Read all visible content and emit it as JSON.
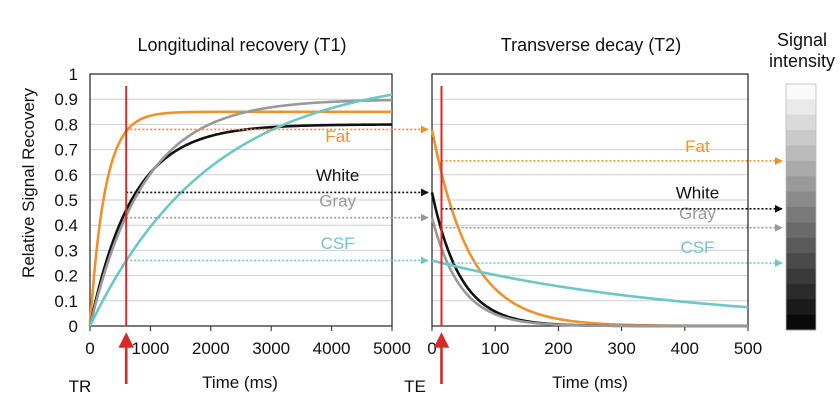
{
  "chart_data": [
    {
      "type": "line",
      "title": "Longitudinal recovery (T1)",
      "xlabel": "Time (ms)",
      "ylabel": "Relative Signal Recovery",
      "xlim": [
        0,
        5000
      ],
      "ylim": [
        0,
        1
      ],
      "xticks": [
        0,
        1000,
        2000,
        3000,
        4000,
        5000
      ],
      "yticks": [
        0,
        0.1,
        0.2,
        0.3,
        0.4,
        0.5,
        0.6,
        0.7,
        0.8,
        0.9,
        1
      ],
      "ytick_labels": [
        "0",
        "0.1",
        "0.2",
        "0.3",
        "0.4",
        "0.5",
        "0.6",
        "0.7",
        "0.8",
        "0.9",
        "1"
      ],
      "grid": "horizontal",
      "marker": {
        "label": "TR",
        "x": 600,
        "color": "#d62a2a"
      },
      "series": [
        {
          "name": "Fat",
          "color": "#f0922b",
          "M0": 0.85,
          "T1": 250,
          "label_x": 4100,
          "label_y": 0.73
        },
        {
          "name": "White",
          "color": "#111111",
          "M0": 0.8,
          "T1": 700,
          "label_x": 4100,
          "label_y": 0.575
        },
        {
          "name": "Gray",
          "color": "#999999",
          "M0": 0.9,
          "T1": 900,
          "label_x": 4100,
          "label_y": 0.475
        },
        {
          "name": "CSF",
          "color": "#6cc7c9",
          "M0": 1.0,
          "T1": 2000,
          "label_x": 4100,
          "label_y": 0.305
        }
      ],
      "arrows": [
        {
          "color": "#f0922b",
          "y": 0.78
        },
        {
          "color": "#111111",
          "y": 0.53
        },
        {
          "color": "#999999",
          "y": 0.43
        },
        {
          "color": "#6cc7c9",
          "y": 0.26
        }
      ]
    },
    {
      "type": "line",
      "title": "Transverse decay (T2)",
      "xlabel": "Time (ms)",
      "xlim": [
        0,
        500
      ],
      "ylim": [
        0,
        1
      ],
      "xticks": [
        0,
        100,
        200,
        300,
        400,
        500
      ],
      "grid": "horizontal",
      "marker": {
        "label": "TE",
        "x": 15,
        "color": "#d62a2a"
      },
      "series": [
        {
          "name": "Fat",
          "color": "#f0922b",
          "S0": 0.78,
          "T2": 60,
          "label_x": 420,
          "label_y": 0.69,
          "arrow_y": 0.655
        },
        {
          "name": "White",
          "color": "#111111",
          "S0": 0.53,
          "T2": 45,
          "label_x": 420,
          "label_y": 0.505,
          "arrow_y": 0.465
        },
        {
          "name": "Gray",
          "color": "#999999",
          "S0": 0.43,
          "T2": 45,
          "label_x": 420,
          "label_y": 0.425,
          "arrow_y": 0.39
        },
        {
          "name": "CSF",
          "color": "#6cc7c9",
          "S0": 0.26,
          "T2": 400,
          "label_x": 420,
          "label_y": 0.29,
          "arrow_y": 0.25
        }
      ]
    }
  ],
  "signal_bar": {
    "title_line1": "Signal",
    "title_line2": "intensity",
    "levels": 16
  }
}
